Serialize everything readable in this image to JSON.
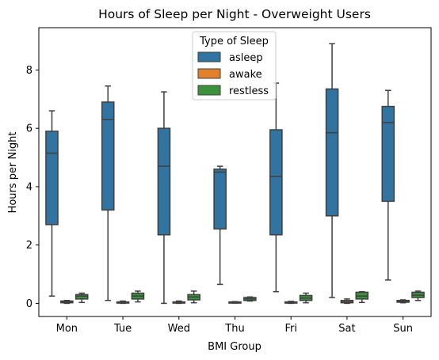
{
  "chart_data": {
    "type": "box",
    "title": "Hours of Sleep per Night - Overweight Users",
    "xlabel": "BMI Group",
    "ylabel": "Hours per Night",
    "categories": [
      "Mon",
      "Tue",
      "Wed",
      "Thu",
      "Fri",
      "Sat",
      "Sun"
    ],
    "ylim": [
      -0.45,
      9.45
    ],
    "yticks": [
      0,
      2,
      4,
      6,
      8
    ],
    "legend": {
      "title": "Type of Sleep",
      "placement": "upper center"
    },
    "series": [
      {
        "name": "asleep",
        "color": "#3274a1",
        "boxes": [
          {
            "whislo": 0.25,
            "q1": 2.7,
            "med": 5.15,
            "q3": 5.9,
            "whishi": 6.6
          },
          {
            "whislo": 0.1,
            "q1": 3.2,
            "med": 6.3,
            "q3": 6.9,
            "whishi": 7.45
          },
          {
            "whislo": 0.0,
            "q1": 2.35,
            "med": 4.7,
            "q3": 6.0,
            "whishi": 7.25
          },
          {
            "whislo": 0.65,
            "q1": 2.55,
            "med": 4.5,
            "q3": 4.6,
            "whishi": 4.7
          },
          {
            "whislo": 0.4,
            "q1": 2.35,
            "med": 4.35,
            "q3": 5.95,
            "whishi": 7.55
          },
          {
            "whislo": 0.2,
            "q1": 3.0,
            "med": 5.85,
            "q3": 7.35,
            "whishi": 8.9
          },
          {
            "whislo": 0.8,
            "q1": 3.5,
            "med": 6.2,
            "q3": 6.75,
            "whishi": 7.3
          }
        ]
      },
      {
        "name": "awake",
        "color": "#e1812c",
        "boxes": [
          {
            "whislo": 0.0,
            "q1": 0.02,
            "med": 0.05,
            "q3": 0.08,
            "whishi": 0.1
          },
          {
            "whislo": 0.0,
            "q1": 0.01,
            "med": 0.03,
            "q3": 0.05,
            "whishi": 0.08
          },
          {
            "whislo": 0.0,
            "q1": 0.01,
            "med": 0.03,
            "q3": 0.05,
            "whishi": 0.08
          },
          {
            "whislo": 0.01,
            "q1": 0.02,
            "med": 0.04,
            "q3": 0.05,
            "whishi": 0.06
          },
          {
            "whislo": 0.0,
            "q1": 0.01,
            "med": 0.03,
            "q3": 0.05,
            "whishi": 0.07
          },
          {
            "whislo": 0.0,
            "q1": 0.02,
            "med": 0.05,
            "q3": 0.1,
            "whishi": 0.15
          },
          {
            "whislo": 0.02,
            "q1": 0.04,
            "med": 0.06,
            "q3": 0.1,
            "whishi": 0.12
          }
        ]
      },
      {
        "name": "restless",
        "color": "#3a923a",
        "boxes": [
          {
            "whislo": 0.03,
            "q1": 0.15,
            "med": 0.25,
            "q3": 0.3,
            "whishi": 0.35
          },
          {
            "whislo": 0.05,
            "q1": 0.15,
            "med": 0.25,
            "q3": 0.35,
            "whishi": 0.42
          },
          {
            "whislo": 0.02,
            "q1": 0.12,
            "med": 0.22,
            "q3": 0.3,
            "whishi": 0.42
          },
          {
            "whislo": 0.08,
            "q1": 0.1,
            "med": 0.15,
            "q3": 0.2,
            "whishi": 0.22
          },
          {
            "whislo": 0.02,
            "q1": 0.1,
            "med": 0.18,
            "q3": 0.27,
            "whishi": 0.35
          },
          {
            "whislo": 0.03,
            "q1": 0.15,
            "med": 0.25,
            "q3": 0.38,
            "whishi": 0.4
          },
          {
            "whislo": 0.1,
            "q1": 0.2,
            "med": 0.28,
            "q3": 0.38,
            "whishi": 0.42
          }
        ]
      }
    ]
  }
}
